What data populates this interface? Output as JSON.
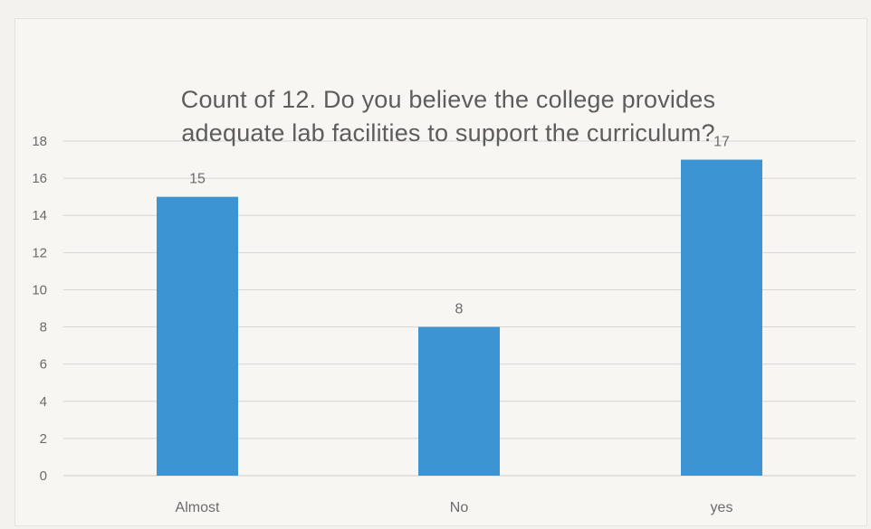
{
  "chart_data": {
    "type": "bar",
    "title_lines": [
      "Count of 12. Do you believe the college provides",
      "adequate lab facilities to support the curriculum?"
    ],
    "categories": [
      "Almost",
      "No",
      "yes"
    ],
    "values": [
      15,
      8,
      17
    ],
    "data_labels": [
      "15",
      "8",
      "17"
    ],
    "y_ticks": [
      "0",
      "2",
      "4",
      "6",
      "8",
      "10",
      "12",
      "14",
      "16",
      "18"
    ],
    "ylim": [
      0,
      18
    ],
    "grid": true,
    "legend": "none",
    "bar_color": "#3d94d2",
    "gridline_color": "#d6d6d6",
    "text_color": "#6b6b6b"
  }
}
